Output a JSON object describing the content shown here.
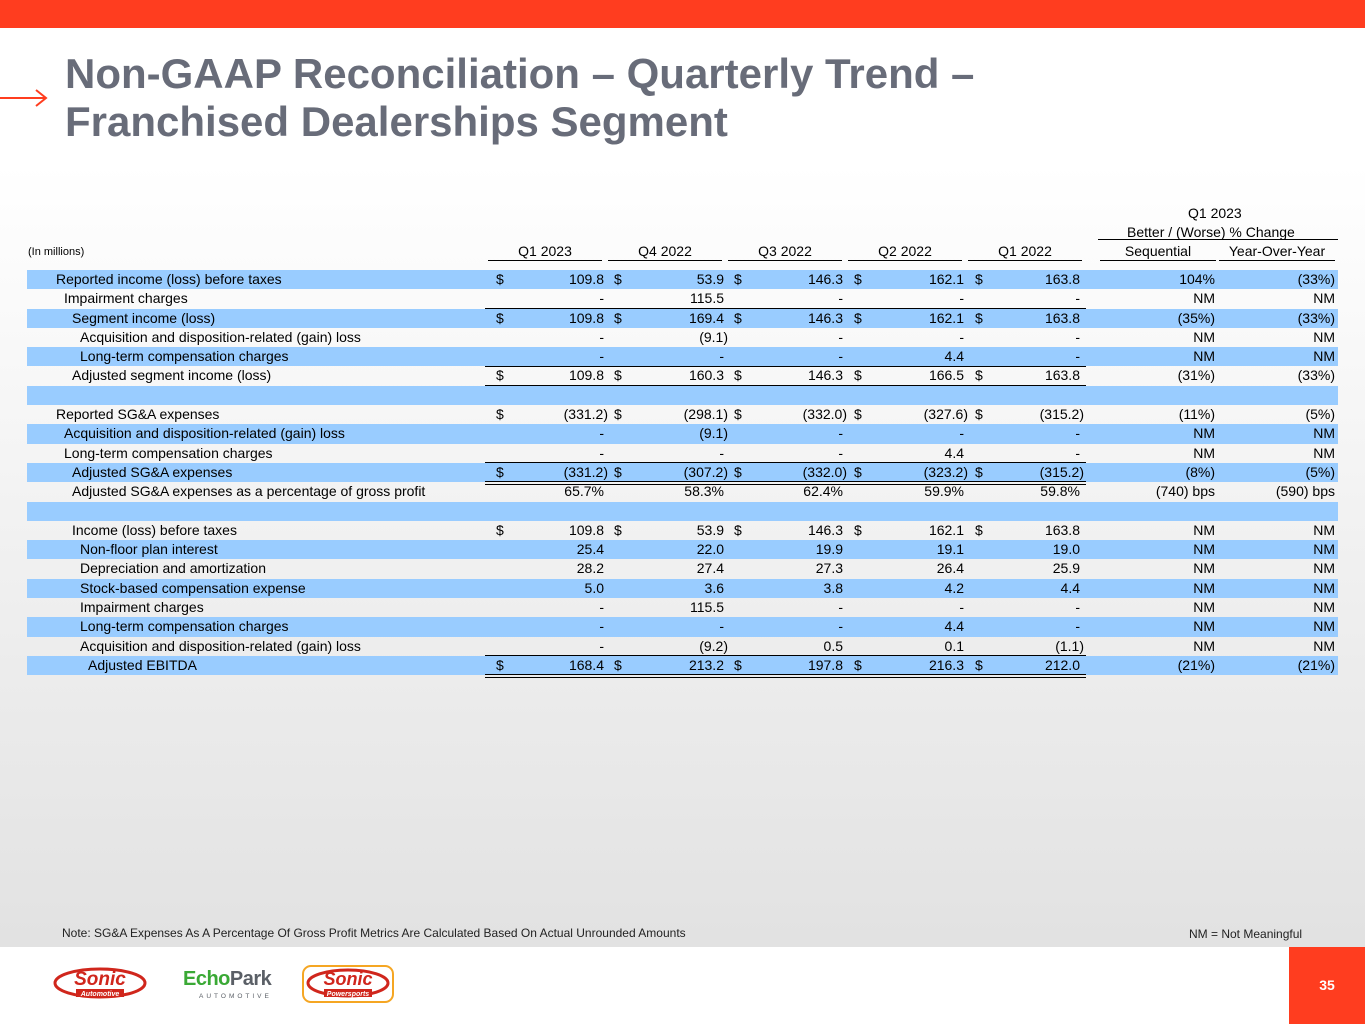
{
  "title": {
    "line1": "Non-GAAP Reconciliation – Quarterly Trend –",
    "line2": "Franchised Dealerships Segment"
  },
  "header": {
    "units": "(In millions)",
    "change_period": "Q1 2023",
    "change_title": "Better / (Worse) % Change",
    "columns": [
      "Q1 2023",
      "Q4 2022",
      "Q3 2022",
      "Q2 2022",
      "Q1 2022"
    ],
    "change_columns": [
      "Sequential",
      "Year-Over-Year"
    ]
  },
  "rows": [
    {
      "label": "Reported income (loss) before taxes",
      "values": [
        "109.8",
        "53.9",
        "146.3",
        "162.1",
        "163.8"
      ],
      "seq": "104%",
      "yoy": "(33%)"
    },
    {
      "label": "Impairment charges",
      "values": [
        "-",
        "115.5",
        "-",
        "-",
        "-"
      ],
      "seq": "NM",
      "yoy": "NM"
    },
    {
      "label": "Segment income (loss)",
      "values": [
        "109.8",
        "169.4",
        "146.3",
        "162.1",
        "163.8"
      ],
      "seq": "(35%)",
      "yoy": "(33%)"
    },
    {
      "label": "Acquisition and disposition-related (gain) loss",
      "values": [
        "-",
        "(9.1)",
        "-",
        "-",
        "-"
      ],
      "seq": "NM",
      "yoy": "NM"
    },
    {
      "label": "Long-term compensation charges",
      "values": [
        "-",
        "-",
        "-",
        "4.4",
        "-"
      ],
      "seq": "NM",
      "yoy": "NM"
    },
    {
      "label": "Adjusted segment income (loss)",
      "values": [
        "109.8",
        "160.3",
        "146.3",
        "166.5",
        "163.8"
      ],
      "seq": "(31%)",
      "yoy": "(33%)"
    },
    {
      "label": "",
      "values": [
        "",
        "",
        "",
        "",
        ""
      ],
      "seq": "",
      "yoy": ""
    },
    {
      "label": "Reported SG&A expenses",
      "values": [
        "(331.2)",
        "(298.1)",
        "(332.0)",
        "(327.6)",
        "(315.2)"
      ],
      "seq": "(11%)",
      "yoy": "(5%)"
    },
    {
      "label": "Acquisition and disposition-related (gain) loss",
      "values": [
        "-",
        "(9.1)",
        "-",
        "-",
        "-"
      ],
      "seq": "NM",
      "yoy": "NM"
    },
    {
      "label": "Long-term compensation charges",
      "values": [
        "-",
        "-",
        "-",
        "4.4",
        "-"
      ],
      "seq": "NM",
      "yoy": "NM"
    },
    {
      "label": "Adjusted SG&A expenses",
      "values": [
        "(331.2)",
        "(307.2)",
        "(332.0)",
        "(323.2)",
        "(315.2)"
      ],
      "seq": "(8%)",
      "yoy": "(5%)"
    },
    {
      "label": "Adjusted SG&A expenses as a percentage of gross profit",
      "values": [
        "65.7%",
        "58.3%",
        "62.4%",
        "59.9%",
        "59.8%"
      ],
      "seq": "(740) bps",
      "yoy": "(590) bps"
    },
    {
      "label": "",
      "values": [
        "",
        "",
        "",
        "",
        ""
      ],
      "seq": "",
      "yoy": ""
    },
    {
      "label": "Income (loss) before taxes",
      "values": [
        "109.8",
        "53.9",
        "146.3",
        "162.1",
        "163.8"
      ],
      "seq": "NM",
      "yoy": "NM"
    },
    {
      "label": "Non-floor plan interest",
      "values": [
        "25.4",
        "22.0",
        "19.9",
        "19.1",
        "19.0"
      ],
      "seq": "NM",
      "yoy": "NM"
    },
    {
      "label": "Depreciation and amortization",
      "values": [
        "28.2",
        "27.4",
        "27.3",
        "26.4",
        "25.9"
      ],
      "seq": "NM",
      "yoy": "NM"
    },
    {
      "label": "Stock-based compensation expense",
      "values": [
        "5.0",
        "3.6",
        "3.8",
        "4.2",
        "4.4"
      ],
      "seq": "NM",
      "yoy": "NM"
    },
    {
      "label": "Impairment charges",
      "values": [
        "-",
        "115.5",
        "-",
        "-",
        "-"
      ],
      "seq": "NM",
      "yoy": "NM"
    },
    {
      "label": "Long-term compensation charges",
      "values": [
        "-",
        "-",
        "-",
        "4.4",
        "-"
      ],
      "seq": "NM",
      "yoy": "NM"
    },
    {
      "label": "Acquisition and disposition-related (gain) loss",
      "values": [
        "-",
        "(9.2)",
        "0.5",
        "0.1",
        "(1.1)"
      ],
      "seq": "NM",
      "yoy": "NM"
    },
    {
      "label": "Adjusted EBITDA",
      "values": [
        "168.4",
        "213.2",
        "197.8",
        "216.3",
        "212.0"
      ],
      "seq": "(21%)",
      "yoy": "(21%)"
    }
  ],
  "currency_symbol": "$",
  "footer": {
    "note": "Note: SG&A Expenses As A Percentage Of Gross Profit Metrics Are Calculated Based On Actual Unrounded Amounts",
    "nm_note": "NM = Not Meaningful",
    "page_number": "35"
  },
  "logos": {
    "sonic_automotive": {
      "word": "Sonic",
      "sub": "Automotive"
    },
    "echopark": {
      "word_a": "Echo",
      "word_b": "Park",
      "sub": "AUTOMOTIVE"
    },
    "sonic_powersports": {
      "word": "Sonic",
      "sub": "Powersports"
    }
  },
  "colors": {
    "accent": "#ff3d1f",
    "title": "#686c79",
    "row_shade": "#99ccff"
  }
}
